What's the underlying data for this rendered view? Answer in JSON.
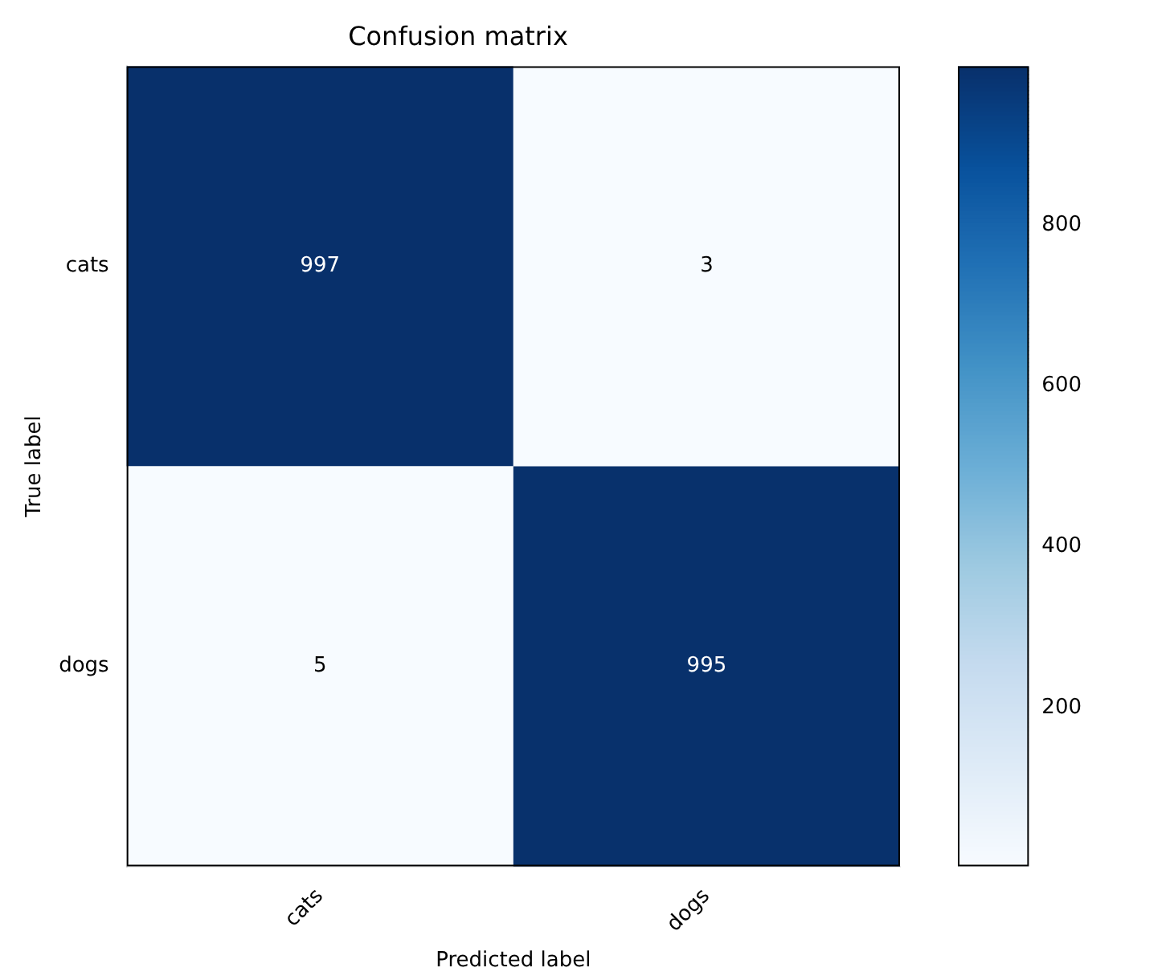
{
  "chart_data": {
    "type": "heatmap",
    "title": "Confusion matrix",
    "xlabel": "Predicted label",
    "ylabel": "True label",
    "categories": [
      "cats",
      "dogs"
    ],
    "y_categories": [
      "cats",
      "dogs"
    ],
    "cells": [
      [
        997,
        3
      ],
      [
        5,
        995
      ]
    ],
    "data_labels": true,
    "clim": [
      3,
      997
    ],
    "cticks": [
      200,
      400,
      600,
      800
    ]
  }
}
